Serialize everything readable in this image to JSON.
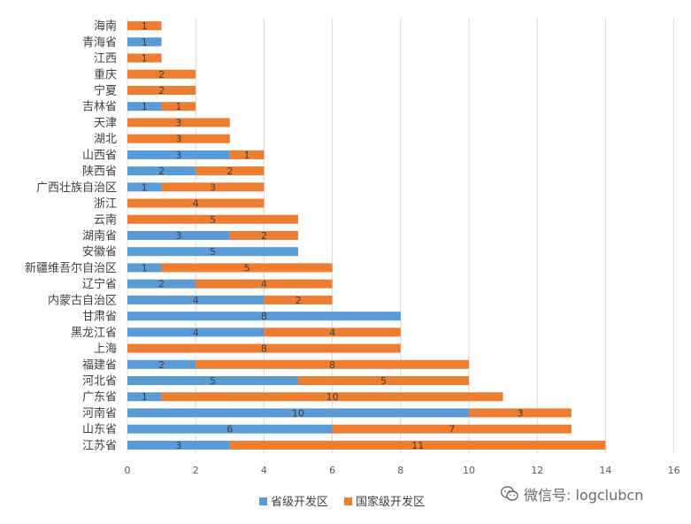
{
  "chart_data": {
    "type": "bar",
    "orientation": "horizontal",
    "stacked": true,
    "categories": [
      "海南",
      "青海省",
      "江西",
      "重庆",
      "宁夏",
      "吉林省",
      "天津",
      "湖北",
      "山西省",
      "陕西省",
      "广西壮族自治区",
      "浙江",
      "云南",
      "湖南省",
      "安徽省",
      "新疆维吾尔自治区",
      "辽宁省",
      "内蒙古自治区",
      "甘肃省",
      "黑龙江省",
      "上海",
      "福建省",
      "河北省",
      "广东省",
      "河南省",
      "山东省",
      "江苏省"
    ],
    "series": [
      {
        "name": "省级开发区",
        "color": "#5b9bd5",
        "values": [
          0,
          1,
          0,
          0,
          0,
          1,
          0,
          0,
          3,
          2,
          1,
          0,
          0,
          3,
          5,
          1,
          2,
          4,
          8,
          4,
          0,
          2,
          5,
          1,
          10,
          6,
          3
        ]
      },
      {
        "name": "国家级开发区",
        "color": "#ed7d31",
        "values": [
          1,
          0,
          1,
          2,
          2,
          1,
          3,
          3,
          1,
          2,
          3,
          4,
          5,
          2,
          0,
          5,
          4,
          2,
          0,
          4,
          8,
          8,
          5,
          10,
          3,
          7,
          11
        ]
      }
    ],
    "xlim": [
      0,
      16
    ],
    "xticks": [
      "0",
      "2",
      "4",
      "6",
      "8",
      "10",
      "12",
      "14",
      "16"
    ],
    "grid": true,
    "legend_position": "bottom"
  },
  "watermark": {
    "icon": "wechat-icon",
    "text": "微信号: logclubcn"
  }
}
